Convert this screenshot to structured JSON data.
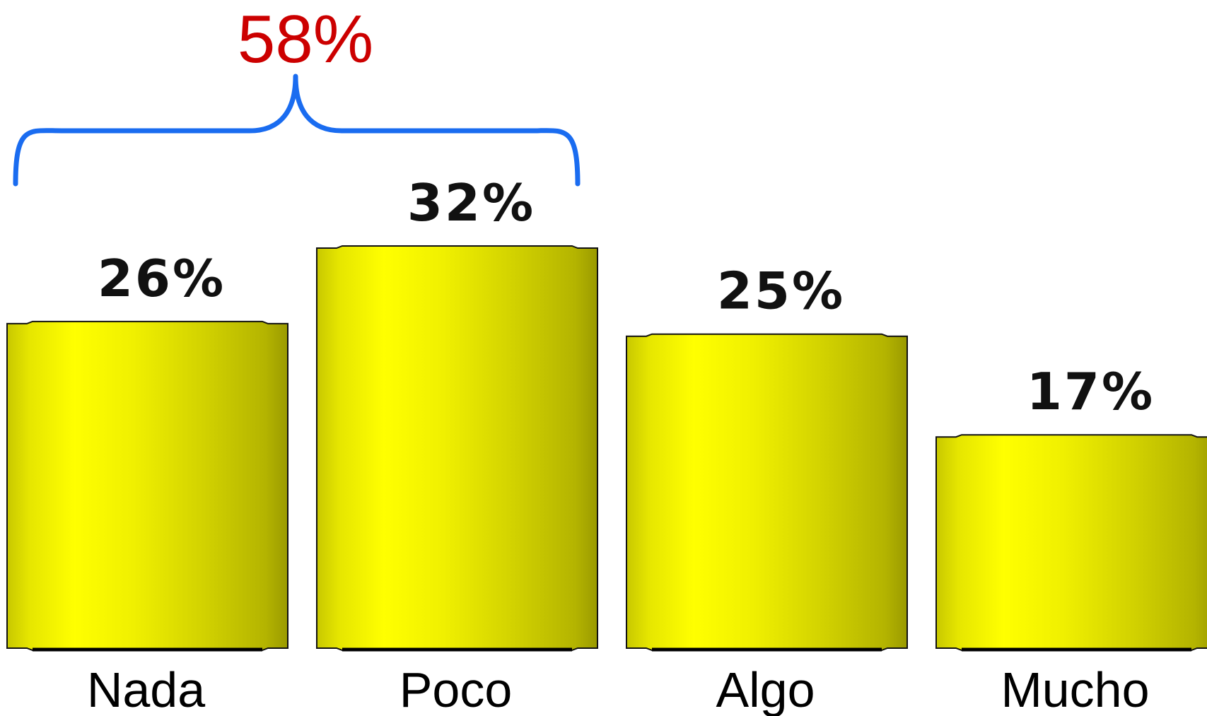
{
  "chart_data": {
    "type": "bar",
    "categories": [
      "Nada",
      "Poco",
      "Algo",
      "Mucho"
    ],
    "values": [
      26,
      32,
      25,
      17
    ],
    "value_labels": [
      "26%",
      "32%",
      "25%",
      "17%"
    ],
    "ylim": [
      0,
      32
    ],
    "grid": false,
    "title": "",
    "xlabel": "",
    "ylabel": "",
    "bar_color": "#ffff00",
    "annotation": {
      "type": "brace",
      "spans_categories": [
        "Nada",
        "Poco"
      ],
      "label": "58%",
      "value": 58,
      "label_color": "#cc0000",
      "brace_color": "#1a6cf0"
    }
  }
}
